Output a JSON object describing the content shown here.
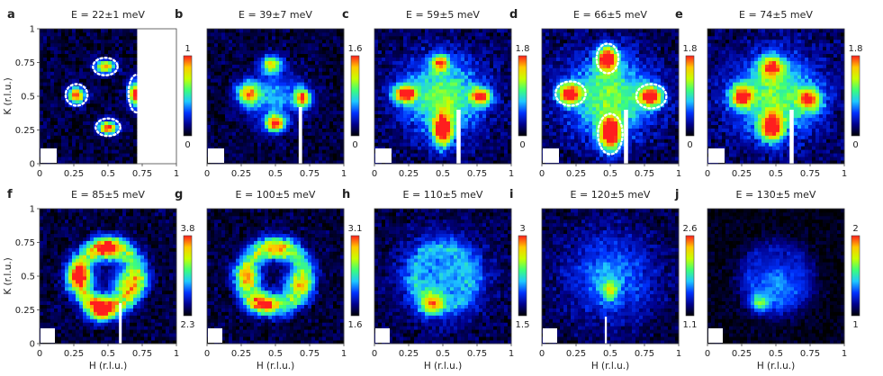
{
  "chart_data": {
    "type": "heatmap",
    "colormap": [
      "#000000",
      "#00008c",
      "#0032ff",
      "#1ec8ff",
      "#3cff78",
      "#c8ff00",
      "#ffc800",
      "#ff1e1e"
    ],
    "xlabel": "H (r.l.u.)",
    "ylabel": "K (r.l.u.)",
    "xlim": [
      0,
      1
    ],
    "ylim": [
      0,
      1
    ],
    "xticks": [
      "0",
      "0.25",
      "0.5",
      "0.75",
      "1"
    ],
    "yticks": [
      "0",
      "0.25",
      "0.5",
      "0.75",
      "1"
    ],
    "panels": [
      {
        "label": "a",
        "title": "E = 22±1 meV",
        "cmin": "0",
        "cmax": "1",
        "row": 0,
        "spots": [
          [
            0.27,
            0.51,
            0.06,
            0.06,
            1.0
          ],
          [
            0.5,
            0.27,
            0.07,
            0.05,
            0.95
          ],
          [
            0.48,
            0.72,
            0.07,
            0.05,
            0.85
          ],
          [
            0.7,
            0.52,
            0.05,
            0.09,
            1.0
          ]
        ],
        "ring": 0.0,
        "bg": 0.12,
        "blank": [
          0.72,
          1.0
        ],
        "mask_bar": null,
        "dashed": [
          [
            0.27,
            0.51,
            0.08,
            0.08
          ],
          [
            0.5,
            0.27,
            0.09,
            0.065
          ],
          [
            0.48,
            0.72,
            0.09,
            0.065
          ],
          [
            0.71,
            0.52,
            0.06,
            0.14
          ]
        ]
      },
      {
        "label": "b",
        "title": "E = 39±7 meV",
        "cmin": "0",
        "cmax": "1.6",
        "row": 0,
        "spots": [
          [
            0.3,
            0.52,
            0.08,
            0.08,
            0.75
          ],
          [
            0.5,
            0.3,
            0.07,
            0.06,
            0.9
          ],
          [
            0.47,
            0.74,
            0.07,
            0.06,
            0.7
          ],
          [
            0.7,
            0.49,
            0.06,
            0.07,
            0.9
          ],
          [
            0.48,
            0.5,
            0.2,
            0.2,
            0.35
          ]
        ],
        "ring": 0.0,
        "bg": 0.12,
        "blank": null,
        "mask_bar": [
          0.67,
          0.0,
          0.025,
          0.42
        ],
        "dashed": []
      },
      {
        "label": "c",
        "title": "E = 59±5 meV",
        "cmin": "0",
        "cmax": "1.8",
        "row": 0,
        "spots": [
          [
            0.22,
            0.52,
            0.08,
            0.06,
            1.0
          ],
          [
            0.78,
            0.5,
            0.07,
            0.06,
            0.9
          ],
          [
            0.5,
            0.25,
            0.07,
            0.12,
            1.0
          ],
          [
            0.48,
            0.75,
            0.06,
            0.06,
            0.75
          ],
          [
            0.5,
            0.5,
            0.3,
            0.28,
            0.55
          ]
        ],
        "ring": 0.0,
        "bg": 0.15,
        "blank": null,
        "mask_bar": [
          0.6,
          0.0,
          0.03,
          0.4
        ],
        "dashed": []
      },
      {
        "label": "d",
        "title": "E = 66±5 meV",
        "cmin": "0",
        "cmax": "1.8",
        "row": 0,
        "spots": [
          [
            0.2,
            0.52,
            0.08,
            0.07,
            1.0
          ],
          [
            0.8,
            0.5,
            0.08,
            0.07,
            0.95
          ],
          [
            0.5,
            0.22,
            0.08,
            0.12,
            1.0
          ],
          [
            0.48,
            0.78,
            0.07,
            0.09,
            1.0
          ],
          [
            0.5,
            0.5,
            0.32,
            0.3,
            0.55
          ]
        ],
        "ring": 0.0,
        "bg": 0.15,
        "blank": null,
        "mask_bar": [
          0.6,
          0.0,
          0.03,
          0.4
        ],
        "dashed": [
          [
            0.21,
            0.52,
            0.11,
            0.09
          ],
          [
            0.8,
            0.5,
            0.11,
            0.09
          ],
          [
            0.5,
            0.22,
            0.09,
            0.15
          ],
          [
            0.48,
            0.78,
            0.08,
            0.11
          ]
        ]
      },
      {
        "label": "e",
        "title": "E = 74±5 meV",
        "cmin": "0",
        "cmax": "1.8",
        "row": 0,
        "spots": [
          [
            0.25,
            0.5,
            0.08,
            0.08,
            0.8
          ],
          [
            0.75,
            0.48,
            0.08,
            0.08,
            0.75
          ],
          [
            0.47,
            0.27,
            0.08,
            0.1,
            0.9
          ],
          [
            0.47,
            0.72,
            0.08,
            0.08,
            0.75
          ],
          [
            0.5,
            0.5,
            0.32,
            0.3,
            0.55
          ]
        ],
        "ring": 0.0,
        "bg": 0.15,
        "blank": null,
        "mask_bar": [
          0.6,
          0.0,
          0.03,
          0.4
        ],
        "dashed": []
      },
      {
        "label": "f",
        "title": "E = 85±5 meV",
        "cmin": "2.3",
        "cmax": "3.8",
        "row": 1,
        "spots": [
          [
            0.45,
            0.25,
            0.1,
            0.08,
            0.85
          ],
          [
            0.5,
            0.7,
            0.1,
            0.08,
            0.6
          ],
          [
            0.3,
            0.5,
            0.1,
            0.1,
            0.55
          ],
          [
            0.62,
            0.45,
            0.1,
            0.1,
            0.5
          ]
        ],
        "ring": 0.55,
        "bg": 0.12,
        "blank": null,
        "mask_bar": [
          0.58,
          0.0,
          0.02,
          0.3
        ],
        "dashed": []
      },
      {
        "label": "g",
        "title": "E = 100±5 meV",
        "cmin": "1.6",
        "cmax": "3.1",
        "row": 1,
        "spots": [
          [
            0.4,
            0.3,
            0.12,
            0.08,
            0.6
          ],
          [
            0.5,
            0.7,
            0.12,
            0.08,
            0.45
          ],
          [
            0.3,
            0.5,
            0.1,
            0.1,
            0.45
          ],
          [
            0.65,
            0.45,
            0.1,
            0.1,
            0.45
          ]
        ],
        "ring": 0.45,
        "bg": 0.12,
        "blank": null,
        "mask_bar": null,
        "dashed": []
      },
      {
        "label": "h",
        "title": "E = 110±5 meV",
        "cmin": "1.5",
        "cmax": "3",
        "row": 1,
        "spots": [
          [
            0.42,
            0.3,
            0.08,
            0.08,
            0.55
          ],
          [
            0.5,
            0.5,
            0.3,
            0.3,
            0.35
          ]
        ],
        "ring": 0.15,
        "bg": 0.12,
        "blank": null,
        "mask_bar": null,
        "dashed": []
      },
      {
        "label": "i",
        "title": "E = 120±5 meV",
        "cmin": "1.1",
        "cmax": "2.6",
        "row": 1,
        "spots": [
          [
            0.5,
            0.5,
            0.32,
            0.32,
            0.32
          ],
          [
            0.5,
            0.4,
            0.06,
            0.08,
            0.4
          ]
        ],
        "ring": 0.0,
        "bg": 0.12,
        "blank": null,
        "mask_bar": [
          0.46,
          0.0,
          0.015,
          0.2
        ],
        "dashed": []
      },
      {
        "label": "j",
        "title": "E = 130±5 meV",
        "cmin": "1",
        "cmax": "2",
        "row": 1,
        "spots": [
          [
            0.5,
            0.45,
            0.2,
            0.2,
            0.35
          ],
          [
            0.38,
            0.3,
            0.06,
            0.06,
            0.4
          ]
        ],
        "ring": 0.1,
        "bg": 0.05,
        "blank": null,
        "mask_bar": null,
        "dashed": []
      }
    ]
  }
}
